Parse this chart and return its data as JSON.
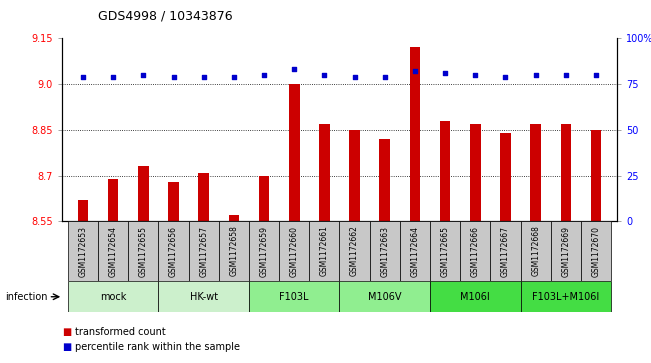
{
  "title": "GDS4998 / 10343876",
  "samples": [
    "GSM1172653",
    "GSM1172654",
    "GSM1172655",
    "GSM1172656",
    "GSM1172657",
    "GSM1172658",
    "GSM1172659",
    "GSM1172660",
    "GSM1172661",
    "GSM1172662",
    "GSM1172663",
    "GSM1172664",
    "GSM1172665",
    "GSM1172666",
    "GSM1172667",
    "GSM1172668",
    "GSM1172669",
    "GSM1172670"
  ],
  "bar_values": [
    8.62,
    8.69,
    8.73,
    8.68,
    8.71,
    8.57,
    8.7,
    9.0,
    8.87,
    8.85,
    8.82,
    9.12,
    8.88,
    8.87,
    8.84,
    8.87,
    8.87,
    8.85
  ],
  "percentile_values": [
    79,
    79,
    80,
    79,
    79,
    79,
    80,
    83,
    80,
    79,
    79,
    82,
    81,
    80,
    79,
    80,
    80,
    80
  ],
  "groups": [
    {
      "label": "mock",
      "start": 0,
      "end": 2,
      "color": "#ccf0cc"
    },
    {
      "label": "HK-wt",
      "start": 3,
      "end": 5,
      "color": "#ccf0cc"
    },
    {
      "label": "F103L",
      "start": 6,
      "end": 8,
      "color": "#90ee90"
    },
    {
      "label": "M106V",
      "start": 9,
      "end": 11,
      "color": "#90ee90"
    },
    {
      "label": "M106I",
      "start": 12,
      "end": 14,
      "color": "#44dd44"
    },
    {
      "label": "F103L+M106I",
      "start": 15,
      "end": 17,
      "color": "#44dd44"
    }
  ],
  "infection_label": "infection",
  "ylim_left": [
    8.55,
    9.15
  ],
  "ylim_right": [
    0,
    100
  ],
  "yticks_left": [
    8.55,
    8.7,
    8.85,
    9.0,
    9.15
  ],
  "yticks_right": [
    0,
    25,
    50,
    75,
    100
  ],
  "bar_color": "#cc0000",
  "percentile_color": "#0000cc",
  "grid_values": [
    8.7,
    8.85,
    9.0
  ],
  "legend_bar": "transformed count",
  "legend_pct": "percentile rank within the sample",
  "sample_box_color": "#c8c8c8",
  "background_color": "#ffffff",
  "bar_width": 0.35
}
